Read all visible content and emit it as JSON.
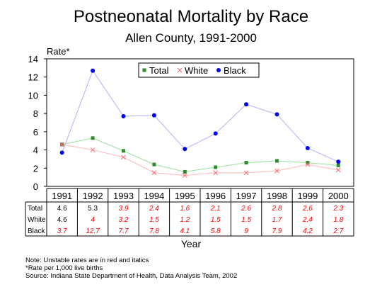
{
  "chart_data": {
    "type": "line",
    "title": "Postneonatal Mortality by Race",
    "subtitle": "Allen County, 1991-2000",
    "ylabel": "Rate*",
    "xlabel": "Year",
    "ylim": [
      0,
      14
    ],
    "yticks": [
      0,
      2,
      4,
      6,
      8,
      10,
      12,
      14
    ],
    "categories": [
      "1991",
      "1992",
      "1993",
      "1994",
      "1995",
      "1996",
      "1997",
      "1998",
      "1999",
      "2000"
    ],
    "legend_position": "top-right",
    "series": [
      {
        "name": "Total",
        "color": "#2e8b2e",
        "marker": "square",
        "values": [
          4.6,
          5.3,
          3.9,
          2.4,
          1.6,
          2.1,
          2.6,
          2.8,
          2.6,
          2.3
        ],
        "labels": [
          "4.6",
          "5.3",
          "3.9",
          "2.4",
          "1.6",
          "2.1",
          "2.6",
          "2.8",
          "2.6",
          "2.3"
        ],
        "unstable": [
          false,
          false,
          true,
          true,
          true,
          true,
          true,
          true,
          true,
          true
        ]
      },
      {
        "name": "White",
        "color": "#ff6a6a",
        "marker": "x",
        "values": [
          4.6,
          4.0,
          3.2,
          1.5,
          1.2,
          1.5,
          1.5,
          1.7,
          2.4,
          1.8
        ],
        "labels": [
          "4.6",
          "4",
          "3.2",
          "1.5",
          "1.2",
          "1.5",
          "1.5",
          "1.7",
          "2.4",
          "1.8"
        ],
        "unstable": [
          false,
          true,
          true,
          true,
          true,
          true,
          true,
          true,
          true,
          true
        ]
      },
      {
        "name": "Black",
        "color": "#0000ee",
        "marker": "circle",
        "values": [
          3.7,
          12.7,
          7.7,
          7.8,
          4.1,
          5.8,
          9.0,
          7.9,
          4.2,
          2.7
        ],
        "labels": [
          "3.7",
          "12.7",
          "7.7",
          "7.8",
          "4.1",
          "5.8",
          "9",
          "7.9",
          "4.2",
          "2.7"
        ],
        "unstable": [
          true,
          true,
          true,
          true,
          true,
          true,
          true,
          true,
          true,
          true
        ]
      }
    ],
    "table_row_labels": [
      "Total",
      "White",
      "Black"
    ]
  },
  "notes": [
    "Note:  Unstable rates are in red and italics",
    "*Rate per 1,000 live births",
    "Source:  Indiana State Department of Health, Data Analysis Team, 2002"
  ],
  "colors": {
    "unstable_text": "#ff0000",
    "stable_text": "#000000",
    "line_total": "#9be09b",
    "line_white": "#ffb6b6",
    "line_black": "#b0b0ff"
  }
}
